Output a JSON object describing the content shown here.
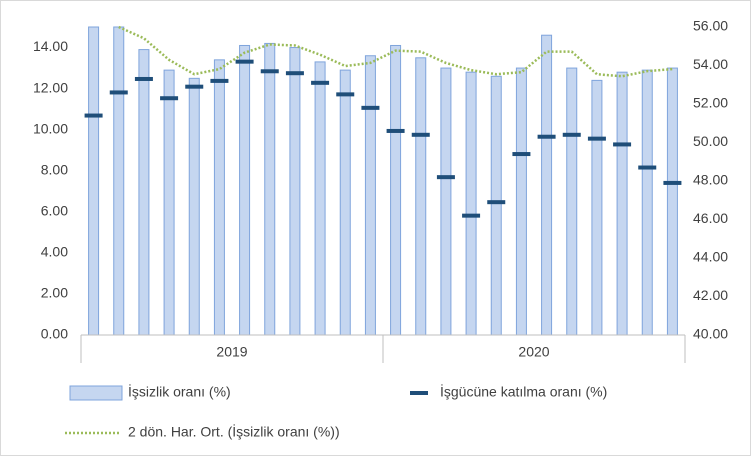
{
  "chart_data": {
    "type": "combo",
    "x_groups": [
      {
        "label": "2019",
        "count": 12
      },
      {
        "label": "2020",
        "count": 12
      }
    ],
    "categories": [
      null,
      null,
      null,
      null,
      null,
      null,
      null,
      null,
      null,
      null,
      null,
      null,
      null,
      null,
      null,
      null,
      null,
      null,
      null,
      null,
      null,
      null,
      null,
      null
    ],
    "series": [
      {
        "name": "İşsizlik oranı (%)",
        "kind": "bar",
        "axis": "y",
        "color": "#c5d6f0",
        "edge": "#7fa4dc",
        "values": [
          15.0,
          15.0,
          13.9,
          12.9,
          12.5,
          13.4,
          14.1,
          14.2,
          14.0,
          13.3,
          12.9,
          13.6,
          14.1,
          13.5,
          13.0,
          12.8,
          12.6,
          13.0,
          14.6,
          13.0,
          12.4,
          12.8,
          12.9,
          13.0
        ]
      },
      {
        "name": "İşgücüne katılma oranı (%)",
        "kind": "marker",
        "axis": "y2",
        "color": "#1f4e79",
        "values": [
          51.4,
          52.6,
          53.3,
          52.3,
          52.9,
          53.2,
          54.2,
          53.7,
          53.6,
          53.1,
          52.5,
          51.8,
          50.6,
          50.4,
          48.2,
          46.2,
          46.9,
          49.4,
          50.3,
          50.4,
          50.2,
          49.9,
          48.7,
          47.9
        ]
      },
      {
        "name": "2 dön. Har. Ort. (İşsizlik oranı (%))",
        "kind": "line",
        "axis": "y",
        "color": "#9bbb59",
        "values": [
          null,
          15.0,
          14.45,
          13.4,
          12.7,
          12.95,
          13.75,
          14.15,
          14.1,
          13.65,
          13.1,
          13.25,
          13.85,
          13.8,
          13.25,
          12.9,
          12.7,
          12.8,
          13.8,
          13.8,
          12.7,
          12.6,
          12.85,
          12.95
        ]
      }
    ],
    "ylim": [
      0,
      15
    ],
    "yticks": [
      {
        "value": 0,
        "label": "0.00"
      },
      {
        "value": 2,
        "label": "2.00"
      },
      {
        "value": 4,
        "label": "4.00"
      },
      {
        "value": 6,
        "label": "6.00"
      },
      {
        "value": 8,
        "label": "8.00"
      },
      {
        "value": 10,
        "label": "10.00"
      },
      {
        "value": 12,
        "label": "12.00"
      },
      {
        "value": 14,
        "label": "14.00"
      }
    ],
    "y2lim": [
      40,
      56
    ],
    "y2ticks": [
      {
        "value": 40,
        "label": "40.00"
      },
      {
        "value": 42,
        "label": "42.00"
      },
      {
        "value": 44,
        "label": "44.00"
      },
      {
        "value": 46,
        "label": "46.00"
      },
      {
        "value": 48,
        "label": "48.00"
      },
      {
        "value": 50,
        "label": "50.00"
      },
      {
        "value": 52,
        "label": "52.00"
      },
      {
        "value": 54,
        "label": "54.00"
      },
      {
        "value": 56,
        "label": "56.00"
      }
    ],
    "grid": false,
    "legend": "bottom"
  }
}
